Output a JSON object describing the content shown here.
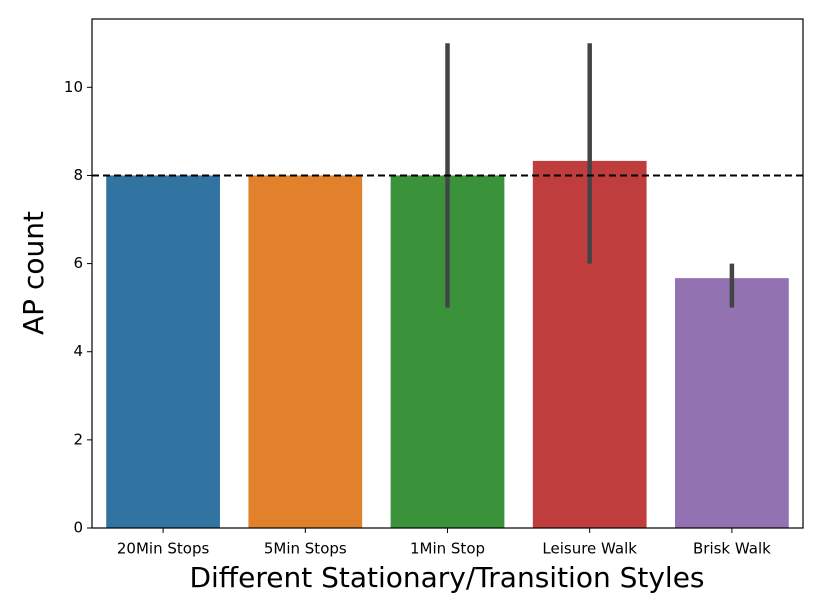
{
  "chart_data": {
    "type": "bar",
    "xlabel": "Different Stationary/Transition Styles",
    "ylabel": "AP count",
    "categories": [
      "20Min Stops",
      "5Min Stops",
      "1Min Stop",
      "Leisure Walk",
      "Brisk Walk"
    ],
    "values": [
      8,
      8,
      8,
      8.33,
      5.67
    ],
    "error_low": [
      null,
      null,
      5,
      6,
      5
    ],
    "error_high": [
      null,
      null,
      11,
      11,
      6
    ],
    "colors": [
      "#3274a1",
      "#e1812c",
      "#3a923a",
      "#c03d3e",
      "#9372b2"
    ],
    "reference_line": 8,
    "ylim": [
      0,
      11.55
    ],
    "yticks": [
      0,
      2,
      4,
      6,
      8,
      10
    ]
  }
}
